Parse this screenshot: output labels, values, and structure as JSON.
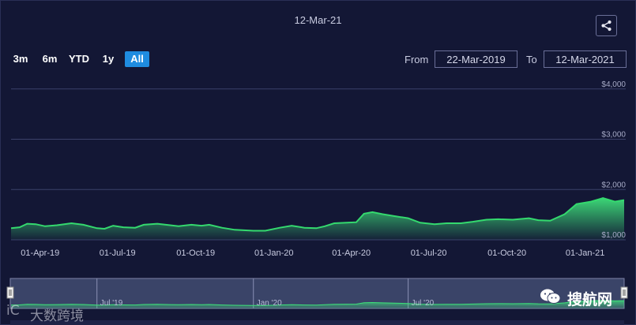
{
  "header": {
    "title": "12-Mar-21",
    "share_icon": "share-icon"
  },
  "range_buttons": [
    {
      "label": "3m",
      "active": false
    },
    {
      "label": "6m",
      "active": false
    },
    {
      "label": "YTD",
      "active": false
    },
    {
      "label": "1y",
      "active": false
    },
    {
      "label": "All",
      "active": true
    }
  ],
  "date_range": {
    "from_label": "From",
    "from_value": "22-Mar-2019",
    "to_label": "To",
    "to_value": "12-Mar-2021"
  },
  "chart_data": {
    "type": "area",
    "ylim": [
      1000,
      4200
    ],
    "y_ticks": [
      "$1,000",
      "$2,000",
      "$3,000",
      "$4,000"
    ],
    "y_tick_values": [
      1000,
      2000,
      3000,
      4000
    ],
    "x_ticks": [
      "01-Apr-19",
      "01-Jul-19",
      "01-Oct-19",
      "01-Jan-20",
      "01-Apr-20",
      "01-Jul-20",
      "01-Oct-20",
      "01-Jan-21"
    ],
    "x_tick_dates": [
      "2019-04-01",
      "2019-07-01",
      "2019-10-01",
      "2020-01-01",
      "2020-04-01",
      "2020-07-01",
      "2020-10-01",
      "2021-01-01"
    ],
    "series": [
      {
        "points": [
          [
            "2019-03-22",
            1230
          ],
          [
            "2019-04-01",
            1250
          ],
          [
            "2019-04-10",
            1320
          ],
          [
            "2019-04-20",
            1310
          ],
          [
            "2019-05-01",
            1270
          ],
          [
            "2019-05-15",
            1290
          ],
          [
            "2019-06-01",
            1330
          ],
          [
            "2019-06-15",
            1300
          ],
          [
            "2019-07-01",
            1230
          ],
          [
            "2019-07-10",
            1220
          ],
          [
            "2019-07-20",
            1280
          ],
          [
            "2019-08-01",
            1250
          ],
          [
            "2019-08-15",
            1240
          ],
          [
            "2019-08-25",
            1300
          ],
          [
            "2019-09-10",
            1320
          ],
          [
            "2019-09-25",
            1290
          ],
          [
            "2019-10-05",
            1270
          ],
          [
            "2019-10-20",
            1300
          ],
          [
            "2019-11-01",
            1280
          ],
          [
            "2019-11-10",
            1300
          ],
          [
            "2019-11-25",
            1240
          ],
          [
            "2019-12-10",
            1200
          ],
          [
            "2020-01-01",
            1180
          ],
          [
            "2020-01-15",
            1180
          ],
          [
            "2020-02-01",
            1240
          ],
          [
            "2020-02-15",
            1280
          ],
          [
            "2020-03-01",
            1240
          ],
          [
            "2020-03-15",
            1230
          ],
          [
            "2020-03-25",
            1270
          ],
          [
            "2020-04-05",
            1330
          ],
          [
            "2020-04-20",
            1340
          ],
          [
            "2020-05-01",
            1350
          ],
          [
            "2020-05-10",
            1520
          ],
          [
            "2020-05-20",
            1550
          ],
          [
            "2020-06-01",
            1510
          ],
          [
            "2020-06-15",
            1470
          ],
          [
            "2020-07-01",
            1430
          ],
          [
            "2020-07-15",
            1340
          ],
          [
            "2020-08-01",
            1310
          ],
          [
            "2020-08-15",
            1330
          ],
          [
            "2020-09-01",
            1330
          ],
          [
            "2020-09-15",
            1360
          ],
          [
            "2020-10-01",
            1400
          ],
          [
            "2020-10-15",
            1410
          ],
          [
            "2020-11-01",
            1400
          ],
          [
            "2020-11-20",
            1430
          ],
          [
            "2020-12-01",
            1390
          ],
          [
            "2020-12-15",
            1380
          ],
          [
            "2021-01-01",
            1510
          ],
          [
            "2021-01-15",
            1710
          ],
          [
            "2021-02-01",
            1760
          ],
          [
            "2021-02-15",
            1830
          ],
          [
            "2021-03-01",
            1760
          ],
          [
            "2021-03-12",
            1790
          ]
        ]
      }
    ]
  },
  "navigator": {
    "x_ticks": [
      "Jul '19",
      "Jan '20",
      "Jul '20"
    ]
  },
  "watermarks": {
    "left_text": "大数跨境",
    "right_text": "搜航网"
  }
}
